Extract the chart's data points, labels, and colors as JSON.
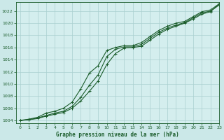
{
  "title": "Graphe pression niveau de la mer (hPa)",
  "background_color": "#cbe8e8",
  "plot_bg_color": "#d4eeee",
  "grid_color": "#aacfcf",
  "line_color": "#1a5c2a",
  "xlim": [
    -0.5,
    23
  ],
  "ylim": [
    1003.5,
    1023.5
  ],
  "yticks": [
    1004,
    1006,
    1008,
    1010,
    1012,
    1014,
    1016,
    1018,
    1020,
    1022
  ],
  "xticks": [
    0,
    1,
    2,
    3,
    4,
    5,
    6,
    7,
    8,
    9,
    10,
    11,
    12,
    13,
    14,
    15,
    16,
    17,
    18,
    19,
    20,
    21,
    22,
    23
  ],
  "series": [
    [
      1004.0,
      1004.1,
      1004.3,
      1004.7,
      1005.0,
      1005.3,
      1006.0,
      1007.2,
      1008.8,
      1010.5,
      1013.2,
      1015.0,
      1015.9,
      1016.0,
      1016.2,
      1017.2,
      1018.2,
      1019.0,
      1019.5,
      1020.0,
      1020.7,
      1021.5,
      1021.9,
      1023.2
    ],
    [
      1004.0,
      1004.1,
      1004.4,
      1004.8,
      1005.2,
      1005.5,
      1006.3,
      1007.8,
      1009.8,
      1011.5,
      1014.5,
      1015.7,
      1016.1,
      1016.1,
      1016.5,
      1017.5,
      1018.5,
      1019.2,
      1019.7,
      1020.1,
      1020.9,
      1021.7,
      1022.0,
      1023.0
    ],
    [
      1004.0,
      1004.2,
      1004.5,
      1005.2,
      1005.5,
      1006.0,
      1007.0,
      1009.2,
      1011.8,
      1013.0,
      1015.5,
      1016.0,
      1016.3,
      1016.3,
      1016.8,
      1017.8,
      1018.8,
      1019.5,
      1020.0,
      1020.3,
      1021.1,
      1021.9,
      1022.2,
      1023.2
    ]
  ],
  "marker": "+",
  "markersize": 3.5,
  "linewidth": 0.8,
  "figsize": [
    3.2,
    2.0
  ],
  "dpi": 100
}
